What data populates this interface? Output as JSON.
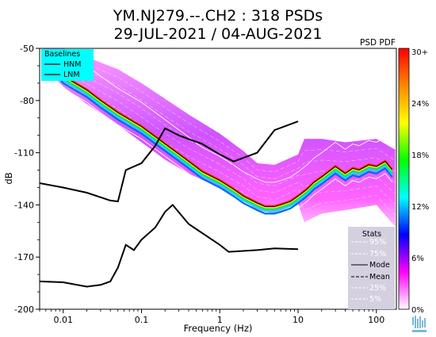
{
  "chart_data": {
    "type": "heatmap",
    "title": "YM.NJ279.--.CH2 : 318 PSDs",
    "subtitle": "29-JUL-2021 / 04-AUG-2021",
    "xlabel": "Frequency (Hz)",
    "ylabel": "dB",
    "x_scale": "log",
    "xlim": [
      0.005,
      180
    ],
    "ylim": [
      -200,
      -50
    ],
    "x_ticks": [
      {
        "value": 0.01,
        "label": "0.01"
      },
      {
        "value": 0.1,
        "label": "0.1"
      },
      {
        "value": 1,
        "label": "1"
      },
      {
        "value": 10,
        "label": "10"
      },
      {
        "value": 100,
        "label": "100"
      }
    ],
    "y_ticks": [
      {
        "value": -50,
        "label": "-50"
      },
      {
        "value": -80,
        "label": "-80"
      },
      {
        "value": -110,
        "label": "-110"
      },
      {
        "value": -140,
        "label": "-140"
      },
      {
        "value": -170,
        "label": "-170"
      },
      {
        "value": -200,
        "label": "-200"
      }
    ],
    "grid": false,
    "colorbar": {
      "title": "PSD PDF",
      "labels": [
        "30+",
        "24%",
        "18%",
        "12%",
        "6%",
        "0%"
      ],
      "stops": [
        "#ff0000",
        "#ff8800",
        "#ffff00",
        "#00ff00",
        "#00ffff",
        "#0000ff",
        "#ff00ff",
        "#ffffff"
      ]
    },
    "baselines_legend": {
      "title": "Baselines",
      "entries": [
        "HNM",
        "LNM"
      ],
      "background": "#00ffff"
    },
    "stats_legend": {
      "title": "Stats",
      "entries": [
        "95%",
        "75%",
        "Mode",
        "Mean",
        "25%",
        "5%"
      ],
      "background": "#d4d0e0"
    },
    "nhnm": {
      "x": [
        0.005,
        0.01,
        0.02,
        0.04,
        0.05,
        0.063,
        0.1,
        0.15,
        0.2,
        0.3,
        0.45,
        0.6,
        1,
        1.5,
        3,
        5,
        10
      ],
      "y": [
        -127.5,
        -130,
        -133,
        -137.5,
        -138,
        -120,
        -116,
        -106,
        -96,
        -100,
        -103,
        -105,
        -111,
        -115,
        -110,
        -97,
        -92
      ]
    },
    "nlnm": {
      "x": [
        0.005,
        0.01,
        0.02,
        0.03,
        0.04,
        0.05,
        0.063,
        0.08,
        0.1,
        0.15,
        0.2,
        0.25,
        0.4,
        1,
        1.3,
        3,
        5,
        10
      ],
      "y": [
        -184,
        -184.5,
        -187,
        -186,
        -184,
        -176,
        -163,
        -166,
        -160,
        -153,
        -144,
        -140,
        -151,
        -163,
        -167,
        -166,
        -165,
        -165.5
      ]
    },
    "mode": {
      "x": [
        0.006,
        0.008,
        0.01,
        0.02,
        0.03,
        0.05,
        0.1,
        0.2,
        0.4,
        0.6,
        1,
        1.5,
        2,
        3,
        3.8,
        4.5,
        5,
        6,
        8,
        10,
        13,
        16,
        20,
        30,
        40,
        50,
        60,
        80,
        100,
        130,
        160
      ],
      "y": [
        -56,
        -61,
        -66,
        -74,
        -80,
        -87,
        -95,
        -105,
        -115,
        -121,
        -126,
        -131,
        -135,
        -139,
        -141,
        -141,
        -141,
        -140,
        -138,
        -135,
        -131,
        -127,
        -124,
        -118,
        -122,
        -119,
        -120,
        -117,
        -118,
        -115,
        -120
      ]
    },
    "pdf_low": {
      "x": [
        0.006,
        0.01,
        0.02,
        0.05,
        0.1,
        0.2,
        0.4,
        1,
        2,
        3,
        5,
        10,
        12,
        20,
        40,
        100,
        170
      ],
      "y": [
        -62,
        -72,
        -82,
        -94,
        -104,
        -114,
        -122,
        -130,
        -137,
        -143,
        -145,
        -139,
        -150,
        -145,
        -143,
        -140,
        -152
      ]
    },
    "pdf_high": {
      "x": [
        0.006,
        0.01,
        0.02,
        0.05,
        0.1,
        0.2,
        0.4,
        1,
        2,
        3,
        5,
        10,
        12,
        20,
        40,
        100,
        170
      ],
      "y": [
        -47,
        -50,
        -55,
        -62,
        -70,
        -79,
        -88,
        -99,
        -109,
        -116,
        -117,
        -111,
        -102,
        -102,
        -104,
        -102,
        -108
      ]
    }
  }
}
